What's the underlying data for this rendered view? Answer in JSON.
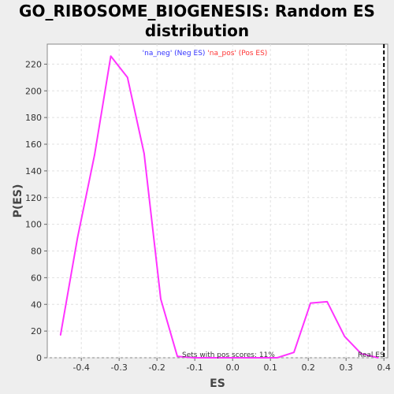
{
  "chart_data": {
    "type": "line",
    "title_line1": "GO_RIBOSOME_BIOGENESIS: Random ES",
    "title_line2": "distribution",
    "xlabel": "ES",
    "ylabel": "P(ES)",
    "xlim": [
      -0.49,
      0.41
    ],
    "ylim": [
      0,
      235
    ],
    "xticks": [
      -0.4,
      -0.3,
      -0.2,
      -0.1,
      0.0,
      0.1,
      0.2,
      0.3,
      0.4
    ],
    "xtick_labels": [
      "-0.4",
      "-0.3",
      "-0.2",
      "-0.1",
      "0.0",
      "0.1",
      "0.2",
      "0.3",
      "0.4"
    ],
    "yticks": [
      0,
      20,
      40,
      60,
      80,
      100,
      120,
      140,
      160,
      180,
      200,
      220
    ],
    "ytick_labels": [
      "0",
      "20",
      "40",
      "60",
      "80",
      "100",
      "120",
      "140",
      "160",
      "180",
      "200",
      "220"
    ],
    "grid": true,
    "legend": {
      "neg_text": "'na_neg' (Neg ES)",
      "pos_text": "'na_pos' (Pos ES)",
      "neg_color": "#3333ff",
      "pos_color": "#ff3333",
      "placement": "top-center"
    },
    "series": [
      {
        "color": "#ff33ff",
        "x": [
          -0.455,
          -0.41,
          -0.365,
          -0.322,
          -0.278,
          -0.234,
          -0.19,
          -0.146,
          -0.102,
          -0.058,
          -0.014,
          0.03,
          0.074,
          0.118,
          0.162,
          0.206,
          0.25,
          0.296,
          0.34,
          0.385
        ],
        "y": [
          17,
          90,
          152,
          226,
          210,
          153,
          44,
          1,
          0,
          0,
          0,
          0,
          0,
          0,
          4,
          41,
          42,
          16,
          3,
          0
        ]
      }
    ],
    "real_es": {
      "x": 0.4,
      "label": "Real ES",
      "style": "dashed",
      "color": "#000000"
    },
    "annotation": "Sets with pos scores: 11%"
  }
}
